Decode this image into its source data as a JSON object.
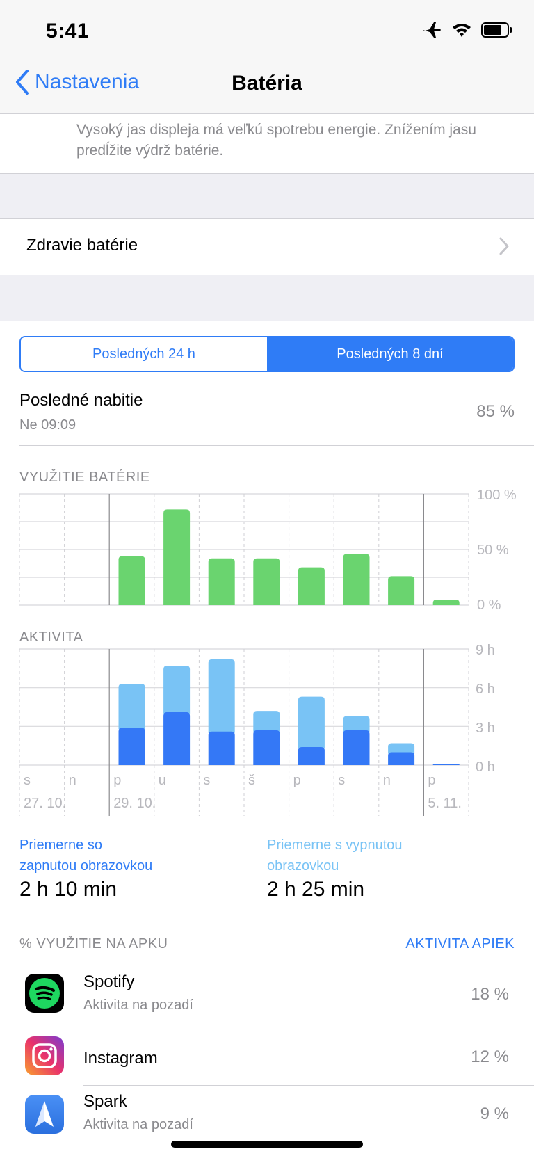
{
  "status": {
    "time": "5:41",
    "icons": [
      "airplane-icon",
      "wifi-icon",
      "battery-icon"
    ]
  },
  "nav": {
    "back_label": "Nastavenia",
    "title": "Batéria"
  },
  "hint": "Vysoký jas displeja má veľkú spotrebu energie. Znížením jasu predĺžite výdrž batérie.",
  "health": {
    "label": "Zdravie batérie"
  },
  "segments": [
    {
      "label": "Posledných 24 h",
      "selected": false
    },
    {
      "label": "Posledných 8 dní",
      "selected": true
    }
  ],
  "last_charge": {
    "label": "Posledné nabitie",
    "time": "Ne 09:09",
    "value": "85 %"
  },
  "colors": {
    "accent": "#2f7cf6",
    "battery_bar": "#6ad46f",
    "screen_on": "#3478f6",
    "screen_off": "#79c3f5"
  },
  "chart_data": [
    {
      "type": "bar",
      "title": "VYUŽITIE BATÉRIE",
      "categories": [
        "s",
        "n",
        "p",
        "u",
        "s",
        "š",
        "p",
        "s",
        "n",
        "p"
      ],
      "date_labels": [
        "27. 10.",
        "29. 10.",
        "5. 11."
      ],
      "ytick_labels": [
        "100 %",
        "50 %",
        "0 %"
      ],
      "ylim": [
        0,
        100
      ],
      "grid": true,
      "values": [
        0,
        0,
        44,
        86,
        42,
        42,
        34,
        46,
        26,
        5
      ]
    },
    {
      "type": "bar",
      "title": "AKTIVITA",
      "categories": [
        "s",
        "n",
        "p",
        "u",
        "s",
        "š",
        "p",
        "s",
        "n",
        "p"
      ],
      "date_labels": [
        "27. 10.",
        "29. 10.",
        "5. 11."
      ],
      "ytick_labels": [
        "9 h",
        "6 h",
        "3 h",
        "0 h"
      ],
      "ylim": [
        0,
        9
      ],
      "grid": true,
      "stacked": true,
      "series": [
        {
          "values": [
            0,
            0,
            2.9,
            4.1,
            2.6,
            2.7,
            1.4,
            2.7,
            1.0,
            0.05
          ]
        },
        {
          "values": [
            0,
            0,
            3.4,
            3.6,
            5.6,
            1.5,
            3.9,
            1.1,
            0.7,
            0.05
          ]
        }
      ]
    }
  ],
  "averages": {
    "on": {
      "label_line1": "Priemerne so",
      "label_line2": "zapnutou obrazovkou",
      "value": "2 h 10 min"
    },
    "off": {
      "label_line1": "Priemerne s vypnutou",
      "label_line2": "obrazovkou",
      "value": "2 h 25 min"
    }
  },
  "apps_header": {
    "title": "% VYUŽITIE NA APKU",
    "link": "AKTIVITA APIEK"
  },
  "apps": [
    {
      "name": "Spotify",
      "sub": "Aktivita na pozadí",
      "pct": "18 %",
      "icon": "spotify-icon"
    },
    {
      "name": "Instagram",
      "sub": "",
      "pct": "12 %",
      "icon": "instagram-icon"
    },
    {
      "name": "Spark",
      "sub": "Aktivita na pozadí",
      "pct": "9 %",
      "icon": "spark-icon"
    }
  ]
}
